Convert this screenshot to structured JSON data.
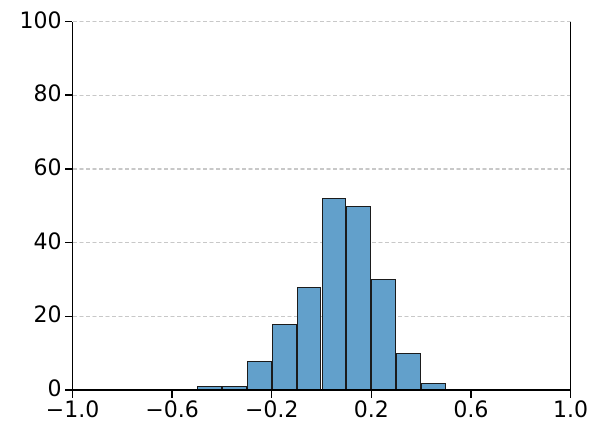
{
  "figure": {
    "title": ""
  },
  "chart_data": {
    "type": "histogram",
    "title": "",
    "xlabel": "",
    "ylabel": "",
    "bin_edges": [
      -0.5,
      -0.4,
      -0.3,
      -0.2,
      -0.1,
      0.0,
      0.1,
      0.2,
      0.3,
      0.4,
      0.5
    ],
    "counts": [
      1,
      1,
      8,
      18,
      28,
      52,
      50,
      30,
      10,
      2
    ],
    "xlim": [
      -1.0,
      1.0
    ],
    "ylim": [
      0,
      100
    ],
    "xticks": {
      "values": [
        -1.0,
        -0.6,
        -0.2,
        0.2,
        0.6,
        1.0
      ],
      "labels": [
        "−1.0",
        "−0.6",
        "−0.2",
        "0.2",
        "0.6",
        "1.0"
      ]
    },
    "yticks": {
      "values": [
        0,
        20,
        40,
        60,
        80,
        100
      ],
      "labels": [
        "0",
        "20",
        "40",
        "60",
        "80",
        "100"
      ]
    },
    "grid": {
      "axis": "y",
      "style": "dashed",
      "color": "#c8c8c8"
    },
    "legend": null,
    "colors": {
      "bar_fill": "#62a0cb",
      "bar_edge": "#1b1b1b",
      "axis": "#000000",
      "tick_label": "#000000",
      "background": "#ffffff"
    }
  }
}
